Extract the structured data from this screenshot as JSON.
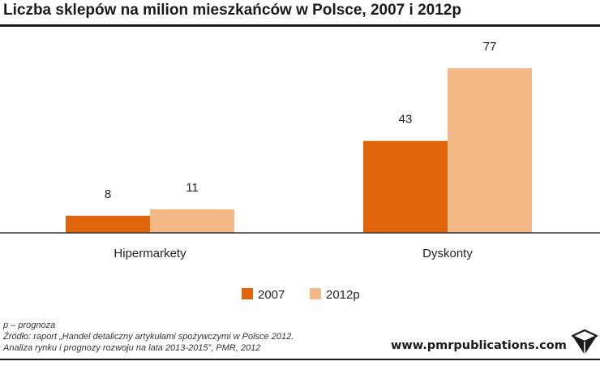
{
  "title": "Liczba sklepów na milion mieszkańców w Polsce, 2007 i 2012p",
  "footnote": {
    "note": "p – prognoza",
    "source_line1": "Źródło: raport „Handel detaliczny artykułami spożywczymi w Polsce 2012.",
    "source_line2": "Analiza rynku i prognozy rozwoju na lata 2013-2015”, PMR, 2012"
  },
  "website": "www.pmrpublications.com",
  "logo_icon": "cube-icon",
  "colors": {
    "series_2007": "#e0650a",
    "series_2012p": "#f3b987",
    "axis": "#333333",
    "text": "#222222"
  },
  "chart_data": {
    "type": "bar",
    "title": "",
    "xlabel": "",
    "ylabel": "",
    "categories": [
      "Hipermarkety",
      "Dyskonty"
    ],
    "series": [
      {
        "name": "2007",
        "values": [
          8,
          43
        ]
      },
      {
        "name": "2012p",
        "values": [
          11,
          77
        ]
      }
    ],
    "ylim": [
      0,
      85
    ],
    "grid": false,
    "legend_position": "bottom",
    "data_labels": true
  }
}
